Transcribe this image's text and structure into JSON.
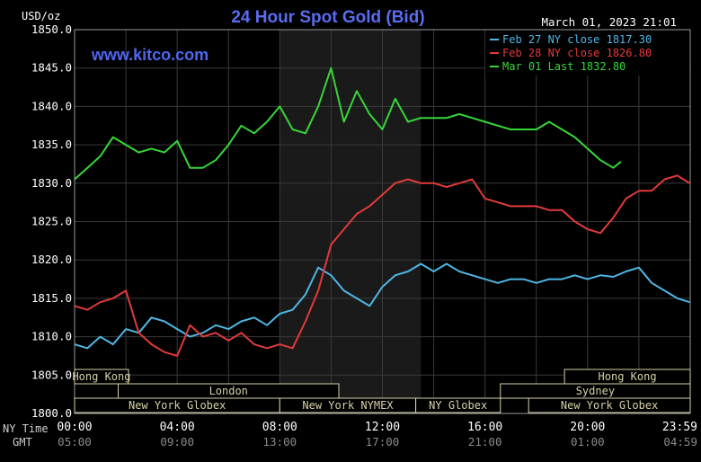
{
  "chart_data": {
    "type": "line",
    "title": "24 Hour Spot Gold (Bid)",
    "watermark": "www.kitco.com",
    "timestamp": "March 01, 2023 21:01",
    "ylabel": "USD/oz",
    "ylim": [
      1800,
      1850
    ],
    "yticks": [
      "1850.0",
      "1845.0",
      "1840.0",
      "1835.0",
      "1830.0",
      "1825.0",
      "1820.0",
      "1815.0",
      "1810.0",
      "1805.0",
      "1800.0"
    ],
    "xlim": [
      0,
      24
    ],
    "ny_time_label": "NY Time",
    "gmt_label": "GMT",
    "ny_ticks": [
      "00:00",
      "04:00",
      "08:00",
      "12:00",
      "16:00",
      "20:00",
      "23:59"
    ],
    "gmt_ticks": [
      "05:00",
      "09:00",
      "13:00",
      "17:00",
      "21:00",
      "01:00",
      "04:59"
    ],
    "tick_hours": [
      0,
      4,
      8,
      12,
      16,
      20,
      24
    ],
    "grid": true,
    "legend_position": "top-right",
    "highlight_hours": [
      8,
      13.5
    ],
    "sessions": [
      {
        "label": "Hong Kong",
        "row": 0,
        "start": 0,
        "end": 2.1
      },
      {
        "label": "Hong Kong",
        "row": 0,
        "start": 19.1,
        "end": 24
      },
      {
        "label": "London",
        "row": 1,
        "start": 1.7,
        "end": 10.3
      },
      {
        "label": "Sydney",
        "row": 1,
        "start": 16.6,
        "end": 24
      },
      {
        "label": "New York Globex",
        "row": 2,
        "start": 0,
        "end": 8
      },
      {
        "label": "New York NYMEX",
        "row": 2,
        "start": 8,
        "end": 13.3
      },
      {
        "label": "NY Globex",
        "row": 2,
        "start": 13.3,
        "end": 16.6
      },
      {
        "label": "New York Globex",
        "row": 2,
        "start": 17.7,
        "end": 24
      }
    ],
    "series": [
      {
        "name": "Feb 27 NY close 1817.30",
        "color": "#4fb6e3",
        "x": [
          0,
          0.5,
          1,
          1.5,
          2,
          2.5,
          3,
          3.5,
          4,
          4.5,
          5,
          5.5,
          6,
          6.5,
          7,
          7.5,
          8,
          8.5,
          9,
          9.5,
          10,
          10.5,
          11,
          11.5,
          12,
          12.5,
          13,
          13.5,
          14,
          14.5,
          15,
          15.5,
          16,
          16.5,
          17,
          17.5,
          18,
          18.5,
          19,
          19.5,
          20,
          20.5,
          21,
          21.5,
          22,
          22.5,
          23,
          23.5,
          23.98
        ],
        "y": [
          1809,
          1808.5,
          1810,
          1809,
          1811,
          1810.5,
          1812.5,
          1812,
          1811,
          1810,
          1810.5,
          1811.5,
          1811,
          1812,
          1812.5,
          1811.5,
          1813,
          1813.5,
          1815.5,
          1819,
          1818,
          1816,
          1815,
          1814,
          1816.5,
          1818,
          1818.5,
          1819.5,
          1818.5,
          1819.5,
          1818.5,
          1818,
          1817.5,
          1817,
          1817.5,
          1817.5,
          1817,
          1817.5,
          1817.5,
          1818,
          1817.5,
          1818,
          1817.8,
          1818.5,
          1819,
          1817,
          1816,
          1815,
          1814.5
        ]
      },
      {
        "name": "Feb 28 NY close 1826.80",
        "color": "#e23a3a",
        "x": [
          0,
          0.5,
          1,
          1.5,
          2,
          2.5,
          3,
          3.5,
          4,
          4.5,
          5,
          5.5,
          6,
          6.5,
          7,
          7.5,
          8,
          8.5,
          9,
          9.5,
          10,
          10.5,
          11,
          11.5,
          12,
          12.5,
          13,
          13.5,
          14,
          14.5,
          15,
          15.5,
          16,
          16.5,
          17,
          17.5,
          18,
          18.5,
          19,
          19.5,
          20,
          20.5,
          21,
          21.5,
          22,
          22.5,
          23,
          23.5,
          23.98
        ],
        "y": [
          1814,
          1813.5,
          1814.5,
          1815,
          1816,
          1810.5,
          1809,
          1808,
          1807.5,
          1811.5,
          1810,
          1810.5,
          1809.5,
          1810.5,
          1809,
          1808.5,
          1809,
          1808.5,
          1812,
          1816,
          1822,
          1824,
          1826,
          1827,
          1828.5,
          1830,
          1830.5,
          1830,
          1830,
          1829.5,
          1830,
          1830.5,
          1828,
          1827.5,
          1827,
          1827,
          1827,
          1826.5,
          1826.5,
          1825,
          1824,
          1823.5,
          1825.5,
          1828,
          1829,
          1829,
          1830.5,
          1831,
          1830
        ]
      },
      {
        "name": "Mar 01 Last 1832.80",
        "color": "#37d63a",
        "x": [
          0,
          0.5,
          1,
          1.5,
          2,
          2.5,
          3,
          3.5,
          4,
          4.5,
          5,
          5.5,
          6,
          6.5,
          7,
          7.5,
          8,
          8.5,
          9,
          9.5,
          10,
          10.5,
          11,
          11.5,
          12,
          12.5,
          13,
          13.5,
          14,
          14.5,
          15,
          15.5,
          16,
          16.5,
          17,
          17.5,
          18,
          18.5,
          19,
          19.5,
          20,
          20.5,
          21,
          21.3
        ],
        "y": [
          1830.5,
          1832,
          1833.5,
          1836,
          1835,
          1834,
          1834.5,
          1834,
          1835.5,
          1832,
          1832,
          1833,
          1835,
          1837.5,
          1836.5,
          1838,
          1840,
          1837,
          1836.5,
          1840,
          1845,
          1838,
          1842,
          1839,
          1837,
          1841,
          1838,
          1838.5,
          1838.5,
          1838.5,
          1839,
          1838.5,
          1838,
          1837.5,
          1837,
          1837,
          1837,
          1838,
          1837,
          1836,
          1834.5,
          1833,
          1832,
          1832.8
        ]
      }
    ]
  }
}
